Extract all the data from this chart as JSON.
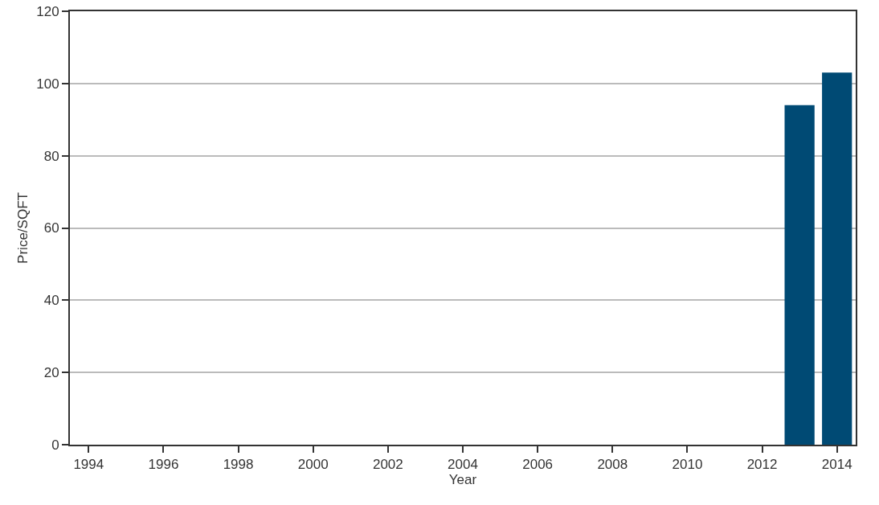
{
  "chart_data": {
    "type": "bar",
    "xlabel": "Year",
    "ylabel": "Price/SQFT",
    "x": [
      2013,
      2014
    ],
    "values": [
      94,
      103
    ],
    "color": "#004a74",
    "xlim": [
      1993.5,
      2014.5
    ],
    "xticks": [
      1994,
      1996,
      1998,
      2000,
      2002,
      2004,
      2006,
      2008,
      2010,
      2012,
      2014
    ],
    "ylim": [
      0,
      120
    ],
    "yticks": [
      0,
      20,
      40,
      60,
      80,
      100,
      120
    ],
    "grid": "y"
  }
}
